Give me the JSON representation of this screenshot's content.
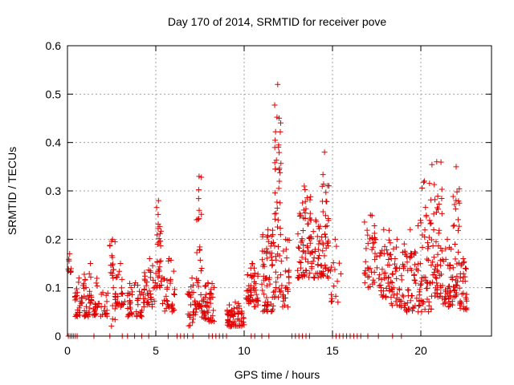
{
  "chart_data": {
    "type": "scatter",
    "title": "Day 170 of 2014, SRMTID for receiver pove",
    "xlabel": "GPS time / hours",
    "ylabel": "SRMTID / TECUs",
    "xlim": [
      0,
      24
    ],
    "ylim": [
      0,
      0.6
    ],
    "xticks": [
      0,
      5,
      10,
      15,
      20
    ],
    "yticks": [
      0,
      0.1,
      0.2,
      0.3,
      0.4,
      0.5,
      0.6
    ],
    "xtick_labels": [
      "0",
      "5",
      "10",
      "15",
      "20"
    ],
    "ytick_labels": [
      "0",
      "0.1",
      "0.2",
      "0.3",
      "0.4",
      "0.5",
      "0.6"
    ],
    "grid": true,
    "marker": "+",
    "color": "#e00000",
    "series": [
      {
        "name": "SRMTID",
        "clusters": [
          {
            "x": [
              0.05,
              0.2
            ],
            "y_min": 0.13,
            "y_max": 0.17,
            "n": 8
          },
          {
            "x": [
              0.4,
              0.9
            ],
            "y_min": 0.04,
            "y_max": 0.12,
            "n": 26
          },
          {
            "x": [
              0.9,
              1.7
            ],
            "y_min": 0.04,
            "y_max": 0.15,
            "n": 50
          },
          {
            "x": [
              1.7,
              2.3
            ],
            "y_min": 0.04,
            "y_max": 0.09,
            "n": 18
          },
          {
            "x": [
              2.4,
              2.7
            ],
            "y_min": 0.02,
            "y_max": 0.2,
            "n": 22
          },
          {
            "x": [
              2.7,
              3.3
            ],
            "y_min": 0.06,
            "y_max": 0.15,
            "n": 26
          },
          {
            "x": [
              3.4,
              4.3
            ],
            "y_min": 0.04,
            "y_max": 0.11,
            "n": 42
          },
          {
            "x": [
              4.3,
              5.0
            ],
            "y_min": 0.06,
            "y_max": 0.16,
            "n": 38
          },
          {
            "x": [
              5.0,
              5.3
            ],
            "y_min": 0.1,
            "y_max": 0.28,
            "n": 30
          },
          {
            "x": [
              5.3,
              6.2
            ],
            "y_min": 0.05,
            "y_max": 0.16,
            "n": 34
          },
          {
            "x": [
              6.8,
              7.3
            ],
            "y_min": 0.02,
            "y_max": 0.12,
            "n": 30
          },
          {
            "x": [
              7.3,
              7.6
            ],
            "y_min": 0.06,
            "y_max": 0.33,
            "n": 30
          },
          {
            "x": [
              7.6,
              8.3
            ],
            "y_min": 0.03,
            "y_max": 0.11,
            "n": 46
          },
          {
            "x": [
              9.0,
              10.0
            ],
            "y_min": 0.02,
            "y_max": 0.07,
            "n": 60
          },
          {
            "x": [
              10.1,
              10.8
            ],
            "y_min": 0.06,
            "y_max": 0.15,
            "n": 50
          },
          {
            "x": [
              11.0,
              11.7
            ],
            "y_min": 0.05,
            "y_max": 0.22,
            "n": 60
          },
          {
            "x": [
              11.7,
              12.1
            ],
            "y_min": 0.08,
            "y_max": 0.52,
            "n": 50
          },
          {
            "x": [
              12.1,
              12.6
            ],
            "y_min": 0.06,
            "y_max": 0.2,
            "n": 26
          },
          {
            "x": [
              13.0,
              13.8
            ],
            "y_min": 0.12,
            "y_max": 0.31,
            "n": 60
          },
          {
            "x": [
              13.8,
              14.3
            ],
            "y_min": 0.12,
            "y_max": 0.24,
            "n": 32
          },
          {
            "x": [
              14.3,
              14.8
            ],
            "y_min": 0.12,
            "y_max": 0.38,
            "n": 44
          },
          {
            "x": [
              14.8,
              15.5
            ],
            "y_min": 0.07,
            "y_max": 0.2,
            "n": 16
          },
          {
            "x": [
              16.8,
              17.5
            ],
            "y_min": 0.1,
            "y_max": 0.25,
            "n": 38
          },
          {
            "x": [
              17.5,
              18.3
            ],
            "y_min": 0.08,
            "y_max": 0.22,
            "n": 44
          },
          {
            "x": [
              18.3,
              19.0
            ],
            "y_min": 0.06,
            "y_max": 0.2,
            "n": 40
          },
          {
            "x": [
              19.0,
              19.8
            ],
            "y_min": 0.05,
            "y_max": 0.22,
            "n": 50
          },
          {
            "x": [
              19.8,
              20.6
            ],
            "y_min": 0.05,
            "y_max": 0.32,
            "n": 60
          },
          {
            "x": [
              20.6,
              21.2
            ],
            "y_min": 0.08,
            "y_max": 0.36,
            "n": 54
          },
          {
            "x": [
              21.2,
              21.8
            ],
            "y_min": 0.06,
            "y_max": 0.2,
            "n": 40
          },
          {
            "x": [
              21.8,
              22.2
            ],
            "y_min": 0.08,
            "y_max": 0.35,
            "n": 36
          },
          {
            "x": [
              22.2,
              22.6
            ],
            "y_min": 0.05,
            "y_max": 0.16,
            "n": 30
          }
        ],
        "zero_level_points": [
          0.05,
          0.15,
          0.25,
          0.35,
          0.45,
          0.55,
          1.5,
          2.4,
          3.1,
          3.4,
          3.8,
          4.2,
          4.6,
          5.7,
          6.2,
          6.4,
          6.6,
          6.8,
          7.1,
          8.0,
          8.2,
          8.4,
          8.6,
          8.8,
          9.0,
          10.4,
          10.6,
          11.0,
          11.4,
          12.7,
          12.9,
          13.1,
          13.3,
          13.5,
          13.7,
          15.0,
          15.2,
          15.4,
          15.6,
          15.8,
          16.0,
          16.2,
          16.4,
          16.6,
          17.0,
          17.6,
          18.4,
          18.9
        ]
      }
    ]
  }
}
